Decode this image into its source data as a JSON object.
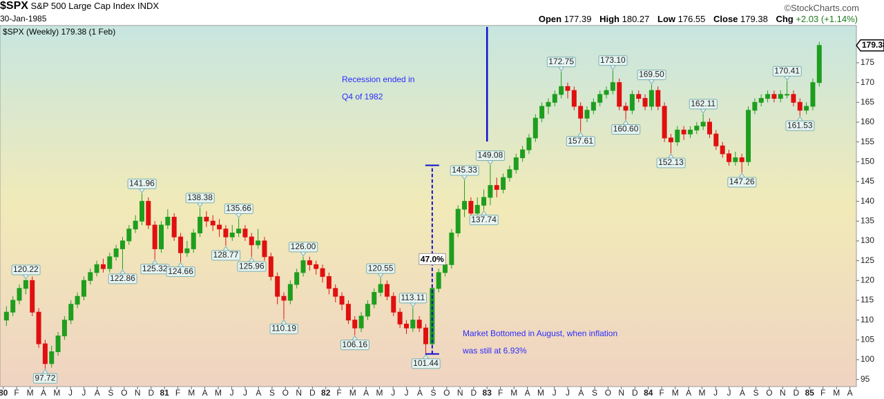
{
  "chart_data": {
    "type": "candlestick",
    "symbol": "$SPX",
    "name": "S&P 500 Large Cap Index",
    "exchange": "INDX",
    "date": "30-Jan-1985",
    "watermark": "©StockCharts.com",
    "quote": {
      "open_label": "Open",
      "open": 177.39,
      "high_label": "High",
      "high": 180.27,
      "low_label": "Low",
      "low": 176.55,
      "close_label": "Close",
      "close": 179.38,
      "chg_label": "Chg",
      "chg": {
        "value": 2.03,
        "label": "+2.03"
      },
      "chg_pct": {
        "value": 1.14,
        "label": "(+1.14%)"
      }
    },
    "legend_label": "$SPX (Weekly) 179.38 (1 Feb)",
    "last_price": 179.38,
    "up_color": "#1e9e1e",
    "down_color": "#e01010",
    "xlim": [
      1979.98,
      1985.29
    ],
    "ylim": [
      93.2,
      184.4
    ],
    "yticks": [
      95,
      100,
      105,
      110,
      115,
      120,
      125,
      130,
      135,
      140,
      145,
      150,
      155,
      160,
      165,
      170,
      175
    ],
    "xticks": [
      {
        "value": 1980,
        "label": "80"
      },
      {
        "value": 1980.083,
        "label": "F"
      },
      {
        "value": 1980.167,
        "label": "M"
      },
      {
        "value": 1980.25,
        "label": "A"
      },
      {
        "value": 1980.333,
        "label": "M"
      },
      {
        "value": 1980.417,
        "label": "J"
      },
      {
        "value": 1980.5,
        "label": "J"
      },
      {
        "value": 1980.583,
        "label": "A"
      },
      {
        "value": 1980.667,
        "label": "S"
      },
      {
        "value": 1980.75,
        "label": "O"
      },
      {
        "value": 1980.833,
        "label": "N"
      },
      {
        "value": 1980.917,
        "label": "D"
      },
      {
        "value": 1981,
        "label": "81"
      },
      {
        "value": 1981.083,
        "label": "F"
      },
      {
        "value": 1981.167,
        "label": "M"
      },
      {
        "value": 1981.25,
        "label": "A"
      },
      {
        "value": 1981.333,
        "label": "M"
      },
      {
        "value": 1981.417,
        "label": "J"
      },
      {
        "value": 1981.5,
        "label": "J"
      },
      {
        "value": 1981.583,
        "label": "A"
      },
      {
        "value": 1981.667,
        "label": "S"
      },
      {
        "value": 1981.75,
        "label": "O"
      },
      {
        "value": 1981.833,
        "label": "N"
      },
      {
        "value": 1981.917,
        "label": "D"
      },
      {
        "value": 1982,
        "label": "82"
      },
      {
        "value": 1982.083,
        "label": "F"
      },
      {
        "value": 1982.167,
        "label": "M"
      },
      {
        "value": 1982.25,
        "label": "A"
      },
      {
        "value": 1982.333,
        "label": "M"
      },
      {
        "value": 1982.417,
        "label": "J"
      },
      {
        "value": 1982.5,
        "label": "J"
      },
      {
        "value": 1982.583,
        "label": "A"
      },
      {
        "value": 1982.667,
        "label": "S"
      },
      {
        "value": 1982.75,
        "label": "O"
      },
      {
        "value": 1982.833,
        "label": "N"
      },
      {
        "value": 1982.917,
        "label": "D"
      },
      {
        "value": 1983,
        "label": "83"
      },
      {
        "value": 1983.083,
        "label": "F"
      },
      {
        "value": 1983.167,
        "label": "M"
      },
      {
        "value": 1983.25,
        "label": "A"
      },
      {
        "value": 1983.333,
        "label": "M"
      },
      {
        "value": 1983.417,
        "label": "J"
      },
      {
        "value": 1983.5,
        "label": "J"
      },
      {
        "value": 1983.583,
        "label": "A"
      },
      {
        "value": 1983.667,
        "label": "S"
      },
      {
        "value": 1983.75,
        "label": "O"
      },
      {
        "value": 1983.833,
        "label": "N"
      },
      {
        "value": 1983.917,
        "label": "D"
      },
      {
        "value": 1984,
        "label": "84"
      },
      {
        "value": 1984.083,
        "label": "F"
      },
      {
        "value": 1984.167,
        "label": "M"
      },
      {
        "value": 1984.25,
        "label": "A"
      },
      {
        "value": 1984.333,
        "label": "M"
      },
      {
        "value": 1984.417,
        "label": "J"
      },
      {
        "value": 1984.5,
        "label": "J"
      },
      {
        "value": 1984.583,
        "label": "A"
      },
      {
        "value": 1984.667,
        "label": "S"
      },
      {
        "value": 1984.75,
        "label": "O"
      },
      {
        "value": 1984.833,
        "label": "N"
      },
      {
        "value": 1984.917,
        "label": "D"
      },
      {
        "value": 1985,
        "label": "85"
      },
      {
        "value": 1985.083,
        "label": "F"
      },
      {
        "value": 1985.167,
        "label": "M"
      },
      {
        "value": 1985.25,
        "label": "A"
      }
    ],
    "x": [
      1980.02,
      1980.06,
      1980.1,
      1980.14,
      1980.18,
      1980.22,
      1980.26,
      1980.3,
      1980.34,
      1980.38,
      1980.42,
      1980.46,
      1980.5,
      1980.54,
      1980.58,
      1980.62,
      1980.66,
      1980.7,
      1980.74,
      1980.78,
      1980.82,
      1980.86,
      1980.9,
      1980.94,
      1980.98,
      1981.02,
      1981.06,
      1981.1,
      1981.14,
      1981.18,
      1981.22,
      1981.26,
      1981.3,
      1981.34,
      1981.38,
      1981.42,
      1981.46,
      1981.5,
      1981.54,
      1981.58,
      1981.62,
      1981.66,
      1981.7,
      1981.74,
      1981.78,
      1981.82,
      1981.86,
      1981.9,
      1981.94,
      1981.98,
      1982.02,
      1982.06,
      1982.1,
      1982.14,
      1982.18,
      1982.22,
      1982.26,
      1982.3,
      1982.34,
      1982.38,
      1982.42,
      1982.46,
      1982.5,
      1982.54,
      1982.58,
      1982.62,
      1982.66,
      1982.7,
      1982.74,
      1982.78,
      1982.82,
      1982.86,
      1982.9,
      1982.94,
      1982.98,
      1983.02,
      1983.06,
      1983.1,
      1983.14,
      1983.18,
      1983.22,
      1983.26,
      1983.3,
      1983.34,
      1983.38,
      1983.42,
      1983.46,
      1983.5,
      1983.54,
      1983.58,
      1983.62,
      1983.66,
      1983.7,
      1983.74,
      1983.78,
      1983.82,
      1983.86,
      1983.9,
      1983.94,
      1983.98,
      1984.02,
      1984.06,
      1984.1,
      1984.14,
      1984.18,
      1984.22,
      1984.26,
      1984.3,
      1984.34,
      1984.38,
      1984.42,
      1984.46,
      1984.5,
      1984.54,
      1984.58,
      1984.62,
      1984.66,
      1984.7,
      1984.74,
      1984.78,
      1984.82,
      1984.86,
      1984.9,
      1984.94,
      1984.98,
      1985.02,
      1985.06
    ],
    "open": [
      110,
      112,
      115,
      118,
      120,
      112,
      104,
      99,
      102,
      106,
      110,
      114,
      116,
      120,
      122,
      124,
      123,
      126,
      128,
      130,
      133,
      135,
      140,
      134,
      128,
      134,
      136,
      131,
      127,
      128,
      132,
      136,
      135,
      134,
      133,
      131,
      132,
      133,
      131,
      129,
      130,
      126,
      121,
      116,
      115,
      119,
      122,
      125,
      124,
      123,
      121,
      118,
      116,
      114,
      110,
      108,
      111,
      114,
      117,
      119,
      116,
      112,
      109,
      108,
      110,
      108,
      104,
      118,
      122,
      124,
      132,
      138,
      140,
      137,
      139,
      141,
      144,
      143,
      146,
      148,
      151,
      153,
      156,
      161,
      164,
      165,
      167,
      169,
      168,
      164,
      161,
      163,
      165,
      167,
      168,
      170,
      164,
      163,
      167,
      166,
      164,
      168,
      164,
      156,
      155,
      158,
      157,
      158,
      159,
      160,
      157,
      154,
      152,
      150,
      151,
      150,
      163,
      165,
      166,
      167,
      166,
      167,
      167,
      165,
      163,
      164,
      170
    ],
    "high": [
      113.5,
      116,
      119,
      120.22,
      121,
      113,
      105,
      103.5,
      107,
      111,
      115,
      117,
      121,
      123,
      125,
      125.5,
      127,
      129,
      131,
      134,
      136.5,
      141.96,
      141,
      135,
      135,
      138,
      137,
      132,
      130,
      133,
      138.38,
      137.5,
      136.5,
      135.5,
      134,
      134,
      135.66,
      134,
      132,
      133,
      131,
      127,
      122,
      117,
      120,
      123,
      126,
      126,
      125,
      124,
      122,
      119,
      117,
      115,
      111,
      112,
      115,
      118,
      120.55,
      120,
      117,
      113,
      110,
      113.11,
      111,
      109,
      119,
      123,
      126,
      133,
      139,
      145.33,
      141,
      141,
      143,
      149.08,
      146,
      147,
      149,
      152,
      154,
      157,
      162,
      165,
      166,
      168,
      172.75,
      170,
      169,
      165,
      164,
      166,
      168,
      169,
      173.1,
      171,
      165,
      168,
      168,
      167,
      169.5,
      169,
      165,
      157,
      159,
      159,
      159,
      160,
      162.11,
      161,
      158,
      155,
      153,
      152.5,
      152,
      164,
      166,
      167,
      168,
      168,
      168,
      170.41,
      168,
      166,
      165,
      171,
      180.27
    ],
    "low": [
      108.5,
      111,
      114,
      116.5,
      111,
      103,
      97.72,
      98,
      101,
      105,
      109,
      113,
      115,
      119,
      121,
      122,
      122,
      125,
      122.86,
      129,
      132,
      134,
      133,
      125.32,
      127,
      133,
      130,
      124.66,
      126,
      127,
      131,
      133.5,
      132.5,
      131,
      128.77,
      130,
      131,
      130,
      125.96,
      128,
      125,
      120,
      114,
      110.19,
      114,
      118,
      121,
      122.5,
      121.5,
      119.5,
      116.5,
      114.5,
      112.5,
      109,
      106.16,
      107,
      110,
      113,
      116,
      115,
      111,
      108,
      106.5,
      107,
      107,
      101.44,
      103,
      117,
      121,
      123,
      131,
      136,
      134,
      136,
      137.74,
      139,
      141,
      142,
      145,
      147,
      150,
      152,
      155,
      160,
      162,
      164,
      166,
      166,
      163,
      157.61,
      160,
      162,
      164,
      166,
      167,
      163,
      160.6,
      162,
      165,
      163,
      163,
      163,
      155,
      152.13,
      154,
      155.5,
      156,
      157,
      158,
      156,
      153,
      151,
      149,
      149,
      147.26,
      149,
      162,
      164,
      165,
      165,
      165,
      166,
      164,
      161.53,
      162,
      163,
      169
    ],
    "close": [
      112,
      115,
      118,
      120,
      112,
      104,
      99,
      102,
      106,
      110,
      114,
      116,
      120,
      122,
      124,
      123,
      126,
      128,
      130,
      133,
      135,
      140,
      134,
      128,
      134,
      136,
      131,
      127,
      128,
      132,
      136,
      135,
      134,
      133,
      131,
      132,
      133,
      131,
      129,
      130,
      126,
      121,
      116,
      115,
      119,
      122,
      125,
      124,
      123,
      121,
      118,
      116,
      114,
      110,
      108,
      111,
      114,
      117,
      119,
      116,
      112,
      109,
      108,
      110,
      108,
      104,
      118,
      122,
      124,
      132,
      138,
      140,
      137,
      139,
      141,
      144,
      143,
      146,
      148,
      151,
      153,
      156,
      161,
      164,
      165,
      167,
      169,
      168,
      164,
      161,
      163,
      165,
      167,
      168,
      170,
      164,
      163,
      167,
      166,
      164,
      168,
      164,
      156,
      155,
      158,
      157,
      158,
      159,
      160,
      157,
      154,
      152,
      150,
      151,
      150,
      163,
      165,
      166,
      167,
      166,
      167,
      167,
      165,
      163,
      164,
      170,
      179.38
    ],
    "callouts": [
      {
        "x": 1980.14,
        "value": 120.22,
        "label": "120.22",
        "position": "above"
      },
      {
        "x": 1980.26,
        "value": 97.72,
        "label": "97.72",
        "position": "below"
      },
      {
        "x": 1980.74,
        "value": 122.86,
        "label": "122.86",
        "position": "below"
      },
      {
        "x": 1980.86,
        "value": 141.96,
        "label": "141.96",
        "position": "above"
      },
      {
        "x": 1980.94,
        "value": 125.32,
        "label": "125.32",
        "position": "below"
      },
      {
        "x": 1981.1,
        "value": 124.66,
        "label": "124.66",
        "position": "below"
      },
      {
        "x": 1981.22,
        "value": 138.38,
        "label": "138.38",
        "position": "above"
      },
      {
        "x": 1981.38,
        "value": 128.77,
        "label": "128.77",
        "position": "below"
      },
      {
        "x": 1981.46,
        "value": 135.66,
        "label": "135.66",
        "position": "above"
      },
      {
        "x": 1981.54,
        "value": 125.96,
        "label": "125.96",
        "position": "below"
      },
      {
        "x": 1981.74,
        "value": 110.19,
        "label": "110.19",
        "position": "below"
      },
      {
        "x": 1981.86,
        "value": 126,
        "label": "126.00",
        "position": "above"
      },
      {
        "x": 1982.18,
        "value": 106.16,
        "label": "106.16",
        "position": "below"
      },
      {
        "x": 1982.34,
        "value": 120.55,
        "label": "120.55",
        "position": "above"
      },
      {
        "x": 1982.54,
        "value": 113.11,
        "label": "113.11",
        "position": "above"
      },
      {
        "x": 1982.62,
        "value": 101.44,
        "label": "101.44",
        "position": "below"
      },
      {
        "x": 1982.86,
        "value": 145.33,
        "label": "145.33",
        "position": "above"
      },
      {
        "x": 1982.98,
        "value": 137.74,
        "label": "137.74",
        "position": "below"
      },
      {
        "x": 1983.02,
        "value": 149.08,
        "label": "149.08",
        "position": "above"
      },
      {
        "x": 1983.46,
        "value": 172.75,
        "label": "172.75",
        "position": "above"
      },
      {
        "x": 1983.58,
        "value": 157.61,
        "label": "157.61",
        "position": "below"
      },
      {
        "x": 1983.78,
        "value": 173.1,
        "label": "173.10",
        "position": "above"
      },
      {
        "x": 1983.86,
        "value": 160.6,
        "label": "160.60",
        "position": "below"
      },
      {
        "x": 1984.02,
        "value": 169.5,
        "label": "169.50",
        "position": "above"
      },
      {
        "x": 1984.14,
        "value": 152.13,
        "label": "152.13",
        "position": "below"
      },
      {
        "x": 1984.34,
        "value": 162.11,
        "label": "162.11",
        "position": "above"
      },
      {
        "x": 1984.58,
        "value": 147.26,
        "label": "147.26",
        "position": "below"
      },
      {
        "x": 1984.86,
        "value": 170.41,
        "label": "170.41",
        "position": "above"
      },
      {
        "x": 1984.94,
        "value": 161.53,
        "label": "161.53",
        "position": "below"
      }
    ],
    "measure": {
      "x": 1982.66,
      "from": 101.44,
      "to": 149.08,
      "label": "47.0%"
    },
    "recession_line": {
      "x": 1983.0,
      "value": 155.1
    },
    "annotations": [
      {
        "lines": [
          "Recession ended in",
          "Q4 of 1982"
        ],
        "color": "#2b2bff"
      },
      {
        "lines": [
          "Market Bottomed in August, when inflation",
          "was still at 6.93%"
        ],
        "color": "#2b2bff"
      }
    ]
  }
}
